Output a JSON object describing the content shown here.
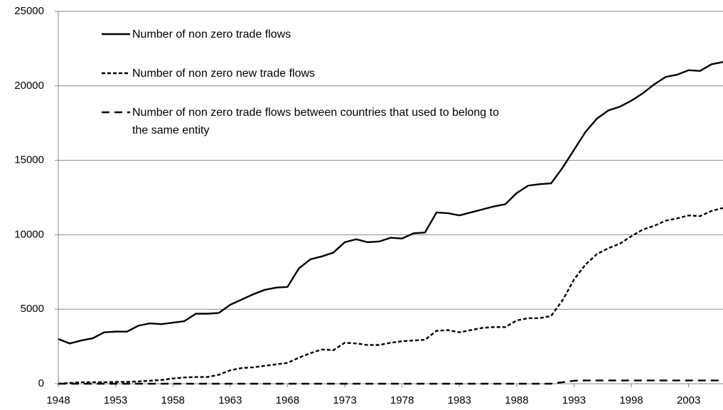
{
  "chart_data": {
    "type": "line",
    "x": [
      1948,
      1949,
      1950,
      1951,
      1952,
      1953,
      1954,
      1955,
      1956,
      1957,
      1958,
      1959,
      1960,
      1961,
      1962,
      1963,
      1964,
      1965,
      1966,
      1967,
      1968,
      1969,
      1970,
      1971,
      1972,
      1973,
      1974,
      1975,
      1976,
      1977,
      1978,
      1979,
      1980,
      1981,
      1982,
      1983,
      1984,
      1985,
      1986,
      1987,
      1988,
      1989,
      1990,
      1991,
      1992,
      1993,
      1994,
      1995,
      1996,
      1997,
      1998,
      1999,
      2000,
      2001,
      2002,
      2003,
      2004,
      2005,
      2006
    ],
    "series": [
      {
        "name": "Number of non zero trade flows",
        "color": "#000000",
        "style": "solid",
        "values": [
          3000,
          2700,
          2900,
          3050,
          3450,
          3500,
          3500,
          3900,
          4050,
          4000,
          4100,
          4200,
          4700,
          4700,
          4750,
          5300,
          5650,
          6000,
          6300,
          6450,
          6500,
          7750,
          8350,
          8550,
          8800,
          9500,
          9700,
          9500,
          9550,
          9800,
          9750,
          10100,
          10150,
          11500,
          11450,
          11300,
          11500,
          11700,
          11900,
          12050,
          12800,
          13300,
          13400,
          13450,
          14500,
          15700,
          16900,
          17800,
          18350,
          18600,
          19000,
          19500,
          20100,
          20600,
          20750,
          21050,
          21000,
          21450,
          21600
        ]
      },
      {
        "name": "Number of non zero new trade flows",
        "color": "#000000",
        "style": "short-dash",
        "values": [
          0,
          50,
          100,
          100,
          100,
          120,
          120,
          150,
          200,
          250,
          350,
          420,
          450,
          450,
          600,
          900,
          1050,
          1100,
          1200,
          1300,
          1400,
          1750,
          2050,
          2300,
          2250,
          2750,
          2700,
          2600,
          2600,
          2750,
          2850,
          2900,
          2950,
          3550,
          3600,
          3450,
          3600,
          3750,
          3800,
          3800,
          4250,
          4400,
          4400,
          4550,
          5600,
          7000,
          8000,
          8700,
          9100,
          9400,
          9900,
          10350,
          10600,
          10950,
          11100,
          11300,
          11250,
          11600,
          11800
        ]
      },
      {
        "name": "Number of non zero trade flows between countries that used to belong to the same entity",
        "color": "#000000",
        "style": "long-dash",
        "values": [
          0,
          0,
          0,
          0,
          0,
          0,
          0,
          0,
          0,
          0,
          0,
          0,
          0,
          0,
          0,
          0,
          0,
          0,
          0,
          0,
          0,
          0,
          0,
          0,
          0,
          0,
          0,
          0,
          0,
          0,
          0,
          0,
          0,
          0,
          0,
          0,
          0,
          0,
          0,
          0,
          0,
          0,
          0,
          0,
          100,
          200,
          220,
          220,
          220,
          220,
          220,
          220,
          220,
          220,
          220,
          220,
          220,
          220,
          220
        ]
      }
    ],
    "xlim": [
      1948,
      2006
    ],
    "xticks": [
      1948,
      1953,
      1958,
      1963,
      1968,
      1973,
      1978,
      1983,
      1988,
      1993,
      1998,
      2003
    ],
    "ylim": [
      0,
      25000
    ],
    "yticks": [
      0,
      5000,
      10000,
      15000,
      20000,
      25000
    ],
    "grid": true,
    "legend": "upper-left"
  }
}
